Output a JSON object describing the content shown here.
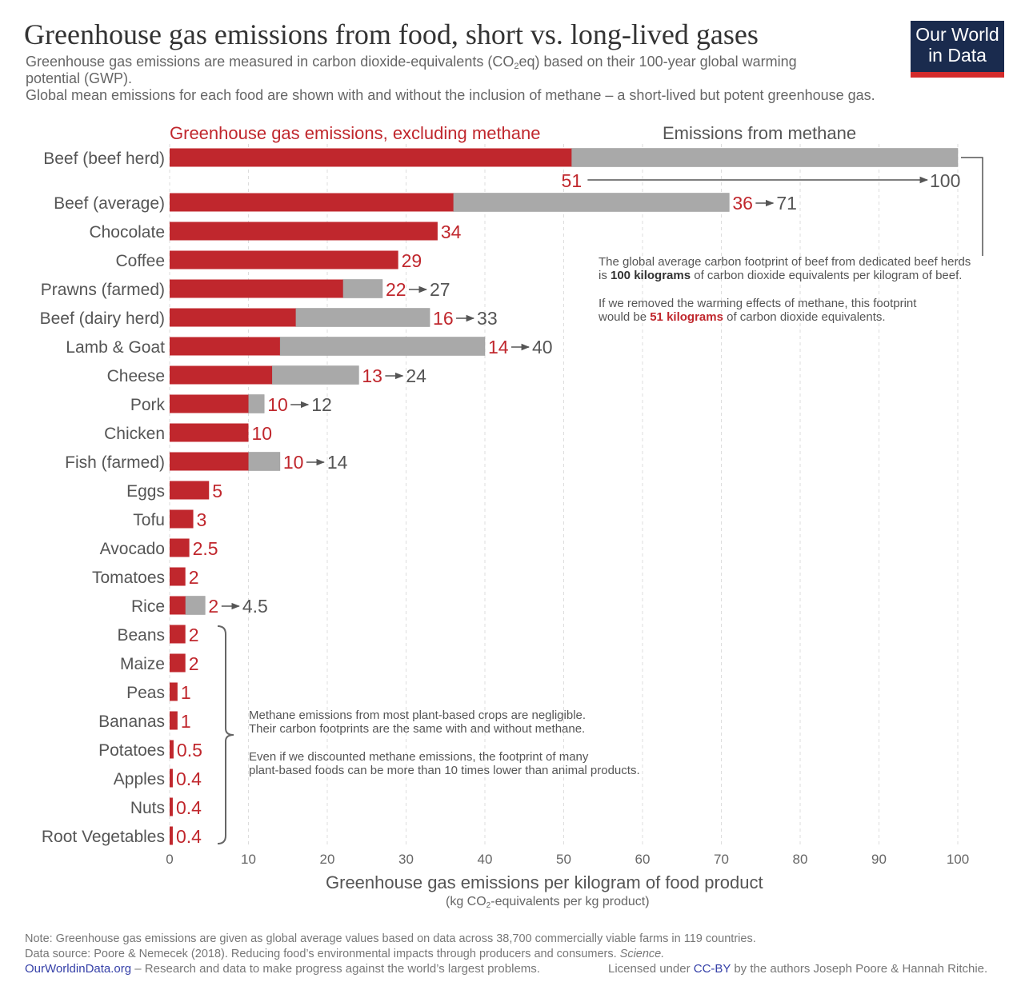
{
  "header": {
    "title": "Greenhouse gas emissions from food, short vs. long-lived gases",
    "subtitle_line1a": "Greenhouse gas emissions are measured in carbon dioxide-equivalents (CO",
    "subtitle_sub": "2",
    "subtitle_line1b": "eq) based on their 100-year global warming",
    "subtitle_line2": "potential (GWP).",
    "subtitle_line3": "Global mean emissions for each food are shown with and without the inclusion of methane – a short-lived but potent greenhouse gas.",
    "logo_line1": "Our World",
    "logo_line2": "in Data"
  },
  "colors": {
    "excluding_methane": "#c0272d",
    "methane": "#a9a9a9",
    "logo_bg": "#1a2b4e",
    "logo_accent": "#d42b2b"
  },
  "chart_data": {
    "type": "bar",
    "orientation": "horizontal",
    "stacked": true,
    "legend_placement": "top",
    "grid": "vertical dashed",
    "xlim": [
      0,
      100
    ],
    "xticks": [
      0,
      10,
      20,
      30,
      40,
      50,
      60,
      70,
      80,
      90,
      100
    ],
    "xlabel": "Greenhouse gas emissions per kilogram of food product",
    "xlabel_unit_a": "(kg CO",
    "xlabel_unit_sub": "2",
    "xlabel_unit_b": "-equivalents per kg product)",
    "series": [
      {
        "name": "Greenhouse gas emissions, excluding methane",
        "color": "#c0272d"
      },
      {
        "name": "Emissions from methane",
        "color": "#a9a9a9"
      }
    ],
    "categories": [
      "Beef (beef herd)",
      "Beef (average)",
      "Chocolate",
      "Coffee",
      "Prawns (farmed)",
      "Beef (dairy herd)",
      "Lamb & Goat",
      "Cheese",
      "Pork",
      "Chicken",
      "Fish (farmed)",
      "Eggs",
      "Tofu",
      "Avocado",
      "Tomatoes",
      "Rice",
      "Beans",
      "Maize",
      "Peas",
      "Bananas",
      "Potatoes",
      "Apples",
      "Nuts",
      "Root Vegetables"
    ],
    "excluding_methane": [
      51,
      36,
      34,
      29,
      22,
      16,
      14,
      13,
      10,
      10,
      10,
      5,
      3,
      2.5,
      2,
      2,
      2,
      2,
      1,
      1,
      0.5,
      0.4,
      0.4,
      0.4
    ],
    "total_with_methane": [
      100,
      71,
      null,
      null,
      27,
      33,
      40,
      24,
      12,
      null,
      14,
      null,
      null,
      null,
      null,
      4.5,
      null,
      null,
      null,
      null,
      null,
      null,
      null,
      null
    ]
  },
  "annotations": {
    "beef_line1": "The global average carbon footprint of beef from dedicated beef herds",
    "beef_line2a": "is ",
    "beef_line2b": "100 kilograms",
    "beef_line2c": " of carbon dioxide equivalents per kilogram of beef.",
    "beef_line3": "If we removed the warming effects of methane, this footprint",
    "beef_line4a": "would be ",
    "beef_line4b": "51 kilograms",
    "beef_line4c": " of carbon dioxide equivalents.",
    "plant_line1": "Methane emissions from most plant-based crops are negligible.",
    "plant_line2": "Their carbon footprints are the same with and without methane.",
    "plant_line3": "Even if we discounted methane emissions, the footprint of many",
    "plant_line4": "plant-based foods can be more than 10 times lower than animal products."
  },
  "footer": {
    "note": "Note: Greenhouse gas emissions are given as global average values based on data across 38,700 commercially viable farms in 119 countries.",
    "source": "Data source: Poore & Nemecek (2018). Reducing food’s environmental impacts through producers and consumers. ",
    "source_journal": "Science.",
    "site": "OurWorldinData.org",
    "site_desc": " – Research and data to make progress against the world’s largest problems.",
    "license_a": "Licensed under ",
    "license_link": "CC-BY",
    "license_b": " by the authors Joseph Poore & Hannah Ritchie."
  }
}
